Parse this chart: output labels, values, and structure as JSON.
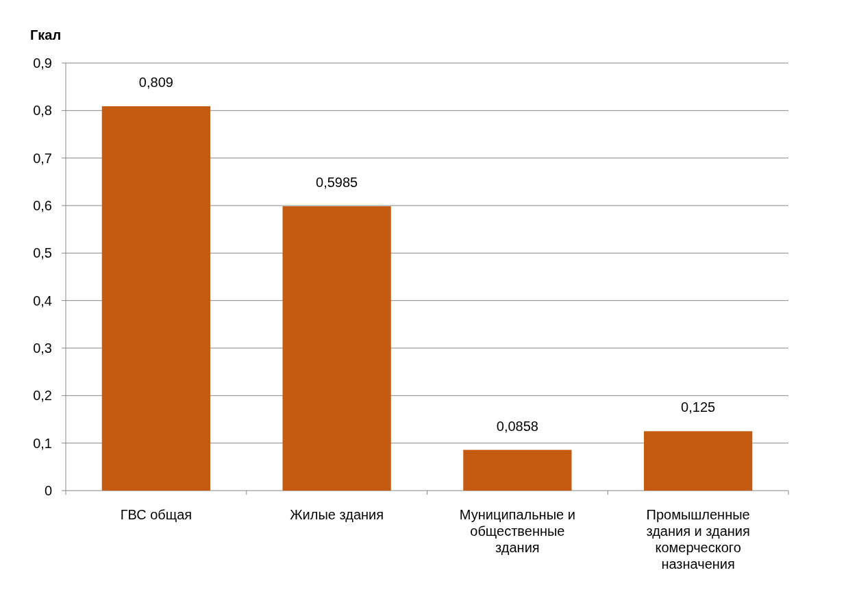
{
  "chart_data": {
    "type": "bar",
    "ylabel": "Гкал",
    "categories": [
      "ГВС общая",
      "Жилые здания",
      "Муниципальные и общественные здания",
      "Промышленные здания и здания комерческого назначения"
    ],
    "values": [
      0.809,
      0.5985,
      0.0858,
      0.125
    ],
    "value_labels": [
      "0,809",
      "0,5985",
      "0,0858",
      "0,125"
    ],
    "color": "#c55a11",
    "ylim": [
      0,
      0.9
    ],
    "yticks": [
      0,
      {
        "value": 0.1,
        "label": "0,1"
      },
      {
        "value": 0.2,
        "label": "0,2"
      },
      {
        "value": 0.3,
        "label": "0,3"
      },
      {
        "value": 0.4,
        "label": "0,4"
      },
      {
        "value": 0.5,
        "label": "0,5"
      },
      {
        "value": 0.6,
        "label": "0,6"
      },
      {
        "value": 0.7,
        "label": "0,7"
      },
      {
        "value": 0.8,
        "label": "0,8"
      },
      {
        "value": 0.9,
        "label": "0,9"
      }
    ],
    "grid": "y"
  }
}
